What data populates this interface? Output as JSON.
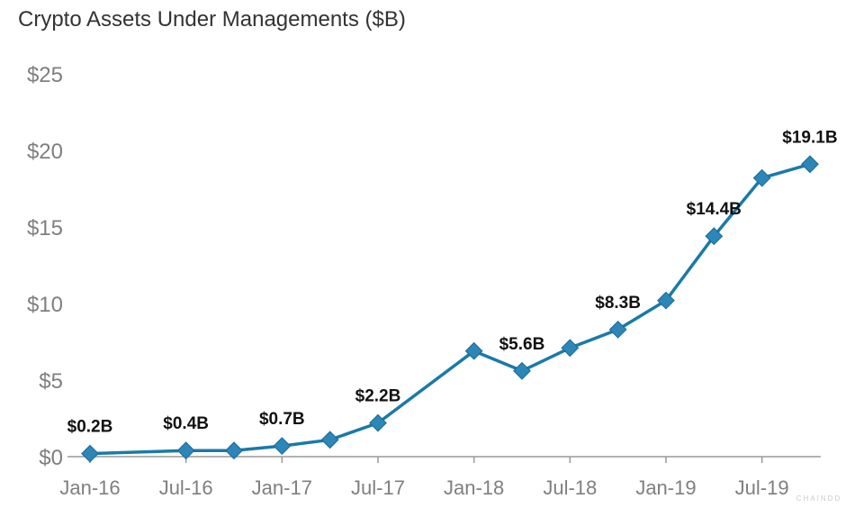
{
  "chart_data": {
    "type": "line",
    "title": "Crypto Assets Under Managements ($B)",
    "x": [
      "Jan-16",
      "Apr-16",
      "Jul-16",
      "Oct-16",
      "Jan-17",
      "Apr-17",
      "Jul-17",
      "Oct-17",
      "Jan-18",
      "Apr-18",
      "Jul-18",
      "Oct-18",
      "Jan-19",
      "Apr-19",
      "Jul-19",
      "Oct-19"
    ],
    "tick_labels": [
      "Jan-16",
      "Jul-16",
      "Jan-17",
      "Jul-17",
      "Jan-18",
      "Jul-18",
      "Jan-19",
      "Jul-19"
    ],
    "values": [
      0.2,
      null,
      0.4,
      0.4,
      0.7,
      1.1,
      2.2,
      null,
      6.9,
      5.6,
      7.1,
      8.3,
      10.2,
      14.4,
      18.2,
      19.1
    ],
    "data_labels": [
      {
        "x": "Jan-16",
        "text": "$0.2B"
      },
      {
        "x": "Jul-16",
        "text": "$0.4B"
      },
      {
        "x": "Jan-17",
        "text": "$0.7B"
      },
      {
        "x": "Jul-17",
        "text": "$2.2B"
      },
      {
        "x": "Apr-18",
        "text": "$5.6B"
      },
      {
        "x": "Oct-18",
        "text": "$8.3B"
      },
      {
        "x": "Apr-19",
        "text": "$14.4B"
      },
      {
        "x": "Oct-19",
        "text": "$19.1B"
      }
    ],
    "y_ticks": [
      "$0",
      "$5",
      "$10",
      "$15",
      "$20",
      "$25"
    ],
    "ylim": [
      0,
      25
    ],
    "grid": false,
    "marker": "diamond",
    "line_color": "#1a7aa8",
    "marker_color": "#2c86b8"
  },
  "watermark": "CHAINDD"
}
